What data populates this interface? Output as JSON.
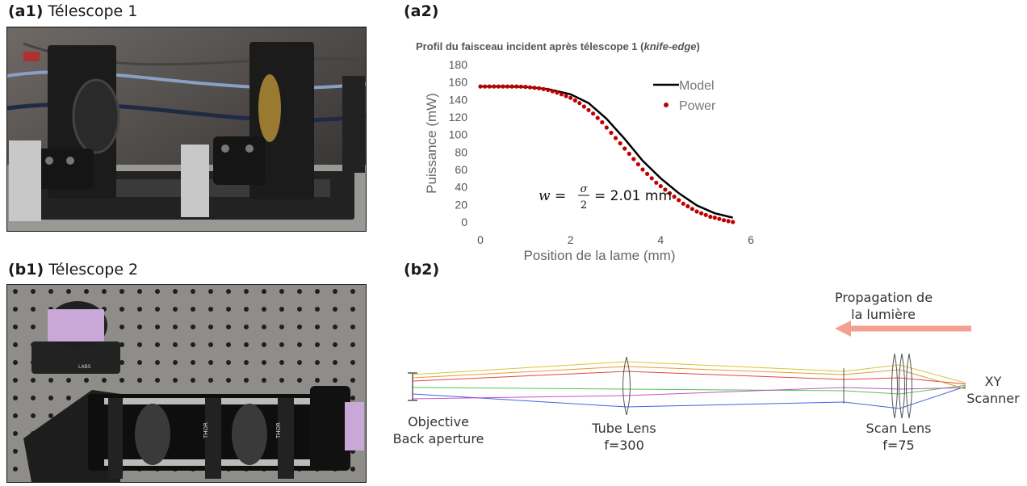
{
  "panels": {
    "a1": {
      "tag": "(a1)",
      "title": "Télescope 1"
    },
    "a2": {
      "tag": "(a2)"
    },
    "b1": {
      "tag": "(b1)",
      "title": "Télescope 2"
    },
    "b2": {
      "tag": "(b2)"
    }
  },
  "chart_data": {
    "type": "scatter",
    "title": "Profil du faisceau incident après télescope 1 (",
    "title_italic": "knife-edge",
    "title_end": ")",
    "xlabel": "Position de la lame (mm)",
    "ylabel": "Puissance (mW)",
    "xlim": [
      0,
      6
    ],
    "ylim": [
      0,
      180
    ],
    "xticks": [
      0,
      2,
      4,
      6
    ],
    "yticks": [
      0,
      20,
      40,
      60,
      80,
      100,
      120,
      140,
      160,
      180
    ],
    "legend_position": "top-right",
    "annotation": "w = σ/2 = 2.01 mm",
    "annotation_lhs": "w =",
    "annotation_num": "σ",
    "annotation_den": "2",
    "annotation_rhs": "= 2.01 mm",
    "grid": false,
    "series": [
      {
        "name": "Model",
        "kind": "line",
        "color": "#000000",
        "x": [
          0,
          0.5,
          1.0,
          1.5,
          2.0,
          2.4,
          2.8,
          3.2,
          3.6,
          4.0,
          4.4,
          4.8,
          5.2,
          5.6
        ],
        "y": [
          155,
          155,
          154.5,
          152,
          146,
          136,
          118,
          95,
          70,
          50,
          33,
          19,
          10,
          5
        ]
      },
      {
        "name": "Power",
        "kind": "scatter",
        "color": "#c00000",
        "x": [
          0,
          0.1,
          0.2,
          0.3,
          0.4,
          0.5,
          0.6,
          0.7,
          0.8,
          0.9,
          1.0,
          1.1,
          1.2,
          1.3,
          1.4,
          1.5,
          1.6,
          1.7,
          1.8,
          1.9,
          2.0,
          2.1,
          2.2,
          2.3,
          2.4,
          2.5,
          2.6,
          2.7,
          2.8,
          2.9,
          3.0,
          3.1,
          3.2,
          3.3,
          3.4,
          3.5,
          3.6,
          3.7,
          3.8,
          3.9,
          4.0,
          4.1,
          4.2,
          4.3,
          4.4,
          4.5,
          4.6,
          4.7,
          4.8,
          4.9,
          5.0,
          5.1,
          5.2,
          5.3,
          5.4,
          5.5,
          5.6
        ],
        "y": [
          155,
          155,
          155,
          155,
          155,
          155,
          155,
          155,
          155,
          154.8,
          154.5,
          154,
          153.5,
          153,
          152,
          151,
          149.5,
          148,
          146,
          144,
          142,
          139,
          136,
          132,
          128,
          124,
          119,
          114,
          108,
          102,
          96,
          90,
          84,
          78,
          72,
          66,
          60,
          55,
          50,
          45,
          41,
          37,
          33,
          29,
          25,
          21,
          18,
          15,
          12,
          10,
          8,
          6,
          5,
          3.5,
          2,
          1,
          0
        ]
      }
    ]
  },
  "optics": {
    "direction_line1": "Propagation de",
    "direction_line2": "la lumière",
    "objective_line1": "Objective",
    "objective_line2": "Back aperture",
    "tube_line1": "Tube Lens",
    "tube_line2": "f=300",
    "scan_line1": "Scan Lens",
    "scan_line2": "f=75",
    "scanner_line1": "XY",
    "scanner_line2": "Scanner",
    "arrow_color": "#f4a090",
    "ray_colors": [
      "#d4c020",
      "#e03030",
      "#40c040",
      "#3050e0",
      "#c040c0",
      "#e09020"
    ]
  },
  "photo_b1_text": {
    "label1": "THOR",
    "label2": "LABS"
  }
}
